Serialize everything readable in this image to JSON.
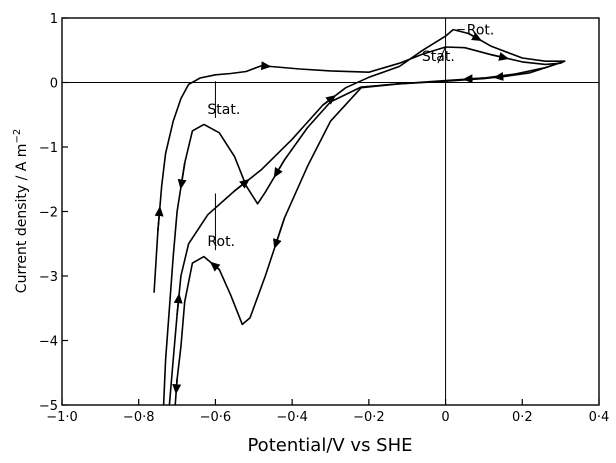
{
  "chart_data": {
    "type": "line",
    "title": "",
    "xlabel": "Potential/V vs SHE",
    "ylabel": "Current density / A m",
    "ylabel_superscript": "−2",
    "xlim": [
      -1.0,
      0.4
    ],
    "ylim": [
      -5,
      1
    ],
    "x_tick_values": [
      -1.0,
      -0.8,
      -0.6,
      -0.4,
      -0.2,
      0,
      0.2,
      0.4
    ],
    "x_tick_labels": [
      "−1·0",
      "−0·8",
      "−0·6",
      "−0·4",
      "−0·2",
      "0",
      "0·2",
      "0·4"
    ],
    "y_tick_values": [
      -5,
      -4,
      -3,
      -2,
      -1,
      0,
      1
    ],
    "y_tick_labels": [
      "−5",
      "−4",
      "−3",
      "−2",
      "−1",
      "0",
      "1"
    ],
    "grid": false,
    "reference_lines": {
      "y_zero": true,
      "x_zero": true
    },
    "annotations": [
      {
        "text": "Rot.",
        "x": 0.05,
        "y": 0.82,
        "leader_to": [
          0.03,
          0.82
        ]
      },
      {
        "text": "Stat.",
        "x": -0.02,
        "y": 0.3,
        "leader_to": [
          0.0,
          0.55
        ]
      },
      {
        "text": "Stat.",
        "x": -0.6,
        "y": -0.55,
        "leader_to": [
          -0.6,
          0.02
        ]
      },
      {
        "text": "Rot.",
        "x": -0.6,
        "y": -2.6,
        "leader_to": [
          -0.6,
          -1.72
        ]
      }
    ],
    "series": [
      {
        "label": "Stat.",
        "segments": [
          {
            "points": [
              [
                -0.76,
                -3.25
              ],
              [
                -0.75,
                -2.3
              ],
              [
                -0.74,
                -1.6
              ],
              [
                -0.73,
                -1.1
              ],
              [
                -0.71,
                -0.6
              ],
              [
                -0.69,
                -0.25
              ],
              [
                -0.67,
                -0.03
              ],
              [
                -0.64,
                0.07
              ],
              [
                -0.6,
                0.12
              ],
              [
                -0.56,
                0.14
              ],
              [
                -0.52,
                0.17
              ],
              [
                -0.48,
                0.26
              ],
              [
                -0.44,
                0.24
              ],
              [
                -0.38,
                0.21
              ],
              [
                -0.3,
                0.18
              ],
              [
                -0.2,
                0.16
              ],
              [
                -0.12,
                0.3
              ],
              [
                -0.06,
                0.44
              ],
              [
                0.0,
                0.55
              ],
              [
                0.05,
                0.54
              ],
              [
                0.12,
                0.43
              ],
              [
                0.2,
                0.32
              ],
              [
                0.26,
                0.28
              ],
              [
                0.3,
                0.3
              ],
              [
                0.31,
                0.33
              ]
            ],
            "arrows": [
              1,
              11,
              20
            ]
          },
          {
            "points": [
              [
                0.31,
                0.33
              ],
              [
                0.28,
                0.27
              ],
              [
                0.22,
                0.15
              ],
              [
                0.16,
                0.1
              ],
              [
                0.1,
                0.06
              ],
              [
                0.0,
                0.02
              ],
              [
                -0.12,
                -0.02
              ],
              [
                -0.22,
                -0.07
              ],
              [
                -0.3,
                -0.3
              ],
              [
                -0.36,
                -0.7
              ],
              [
                -0.42,
                -1.2
              ],
              [
                -0.47,
                -1.7
              ],
              [
                -0.49,
                -1.88
              ],
              [
                -0.52,
                -1.6
              ],
              [
                -0.55,
                -1.15
              ],
              [
                -0.59,
                -0.78
              ],
              [
                -0.63,
                -0.65
              ],
              [
                -0.66,
                -0.75
              ],
              [
                -0.68,
                -1.25
              ],
              [
                -0.7,
                -2.0
              ],
              [
                -0.71,
                -2.7
              ],
              [
                -0.72,
                -3.5
              ],
              [
                -0.73,
                -4.3
              ],
              [
                -0.735,
                -5.0
              ]
            ],
            "arrows": [
              3,
              10,
              18
            ]
          }
        ]
      },
      {
        "label": "Rot.",
        "segments": [
          {
            "points": [
              [
                -0.72,
                -5.0
              ],
              [
                -0.71,
                -4.3
              ],
              [
                -0.7,
                -3.6
              ],
              [
                -0.69,
                -3.0
              ],
              [
                -0.67,
                -2.5
              ],
              [
                -0.62,
                -2.05
              ],
              [
                -0.55,
                -1.68
              ],
              [
                -0.48,
                -1.35
              ],
              [
                -0.4,
                -0.88
              ],
              [
                -0.32,
                -0.35
              ],
              [
                -0.26,
                -0.08
              ],
              [
                -0.2,
                0.08
              ],
              [
                -0.12,
                0.25
              ],
              [
                -0.06,
                0.5
              ],
              [
                0.0,
                0.72
              ],
              [
                0.02,
                0.82
              ],
              [
                0.06,
                0.76
              ],
              [
                0.12,
                0.56
              ],
              [
                0.2,
                0.38
              ],
              [
                0.26,
                0.33
              ],
              [
                0.31,
                0.33
              ]
            ],
            "arrows": [
              2,
              6,
              9,
              16
            ]
          },
          {
            "points": [
              [
                0.31,
                0.33
              ],
              [
                0.26,
                0.23
              ],
              [
                0.18,
                0.13
              ],
              [
                0.1,
                0.07
              ],
              [
                0.0,
                0.03
              ],
              [
                -0.12,
                -0.02
              ],
              [
                -0.22,
                -0.08
              ],
              [
                -0.3,
                -0.6
              ],
              [
                -0.36,
                -1.3
              ],
              [
                -0.42,
                -2.1
              ],
              [
                -0.47,
                -3.0
              ],
              [
                -0.51,
                -3.65
              ],
              [
                -0.53,
                -3.75
              ],
              [
                -0.56,
                -3.3
              ],
              [
                -0.59,
                -2.9
              ],
              [
                -0.63,
                -2.7
              ],
              [
                -0.66,
                -2.8
              ],
              [
                -0.68,
                -3.4
              ],
              [
                -0.69,
                -4.1
              ],
              [
                -0.7,
                -4.6
              ],
              [
                -0.705,
                -5.0
              ]
            ],
            "arrows": [
              3,
              9,
              14,
              19
            ]
          }
        ]
      }
    ]
  }
}
